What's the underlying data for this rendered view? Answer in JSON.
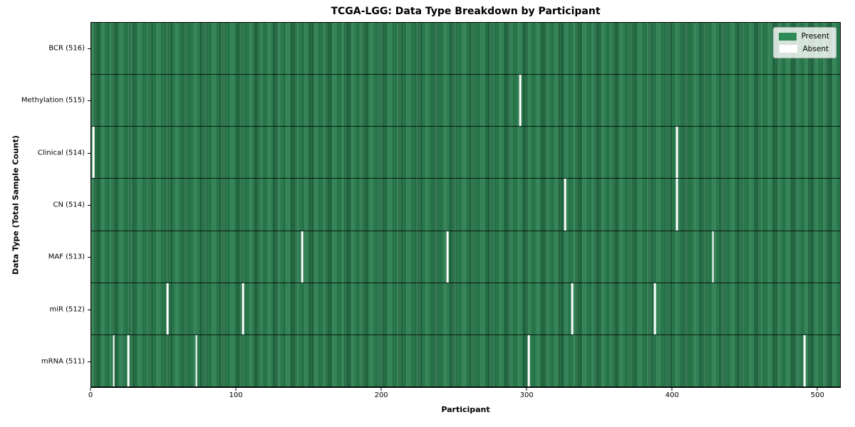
{
  "chart_data": {
    "type": "heatmap",
    "title": "TCGA-LGG: Data Type Breakdown by Participant",
    "xlabel": "Participant",
    "ylabel": "Data Type (Total Sample Count)",
    "n_participants": 516,
    "x_range": [
      0,
      516
    ],
    "x_ticks": [
      0,
      100,
      200,
      300,
      400,
      500
    ],
    "grid": false,
    "legend_position": "upper right",
    "colors": {
      "present": "#2e8b57",
      "absent": "#ffffff"
    },
    "legend": [
      {
        "label": "Present",
        "color": "#2e8b57"
      },
      {
        "label": "Absent",
        "color": "#ffffff"
      }
    ],
    "rows": [
      {
        "label": "BCR (516)",
        "data_type": "BCR",
        "total": 516,
        "absent_participants": []
      },
      {
        "label": "Methylation (515)",
        "data_type": "Methylation",
        "total": 515,
        "absent_participants": [
          295
        ]
      },
      {
        "label": "Clinical (514)",
        "data_type": "Clinical",
        "total": 514,
        "absent_participants": [
          1,
          403
        ]
      },
      {
        "label": "CN (514)",
        "data_type": "CN",
        "total": 514,
        "absent_participants": [
          326,
          403
        ]
      },
      {
        "label": "MAF (513)",
        "data_type": "MAF",
        "total": 513,
        "absent_participants": [
          145,
          245,
          428
        ]
      },
      {
        "label": "miR (512)",
        "data_type": "miR",
        "total": 512,
        "absent_participants": [
          52,
          104,
          331,
          388
        ]
      },
      {
        "label": "mRNA (511)",
        "data_type": "mRNA",
        "total": 511,
        "absent_participants": [
          15,
          25,
          72,
          301,
          491
        ]
      }
    ]
  }
}
